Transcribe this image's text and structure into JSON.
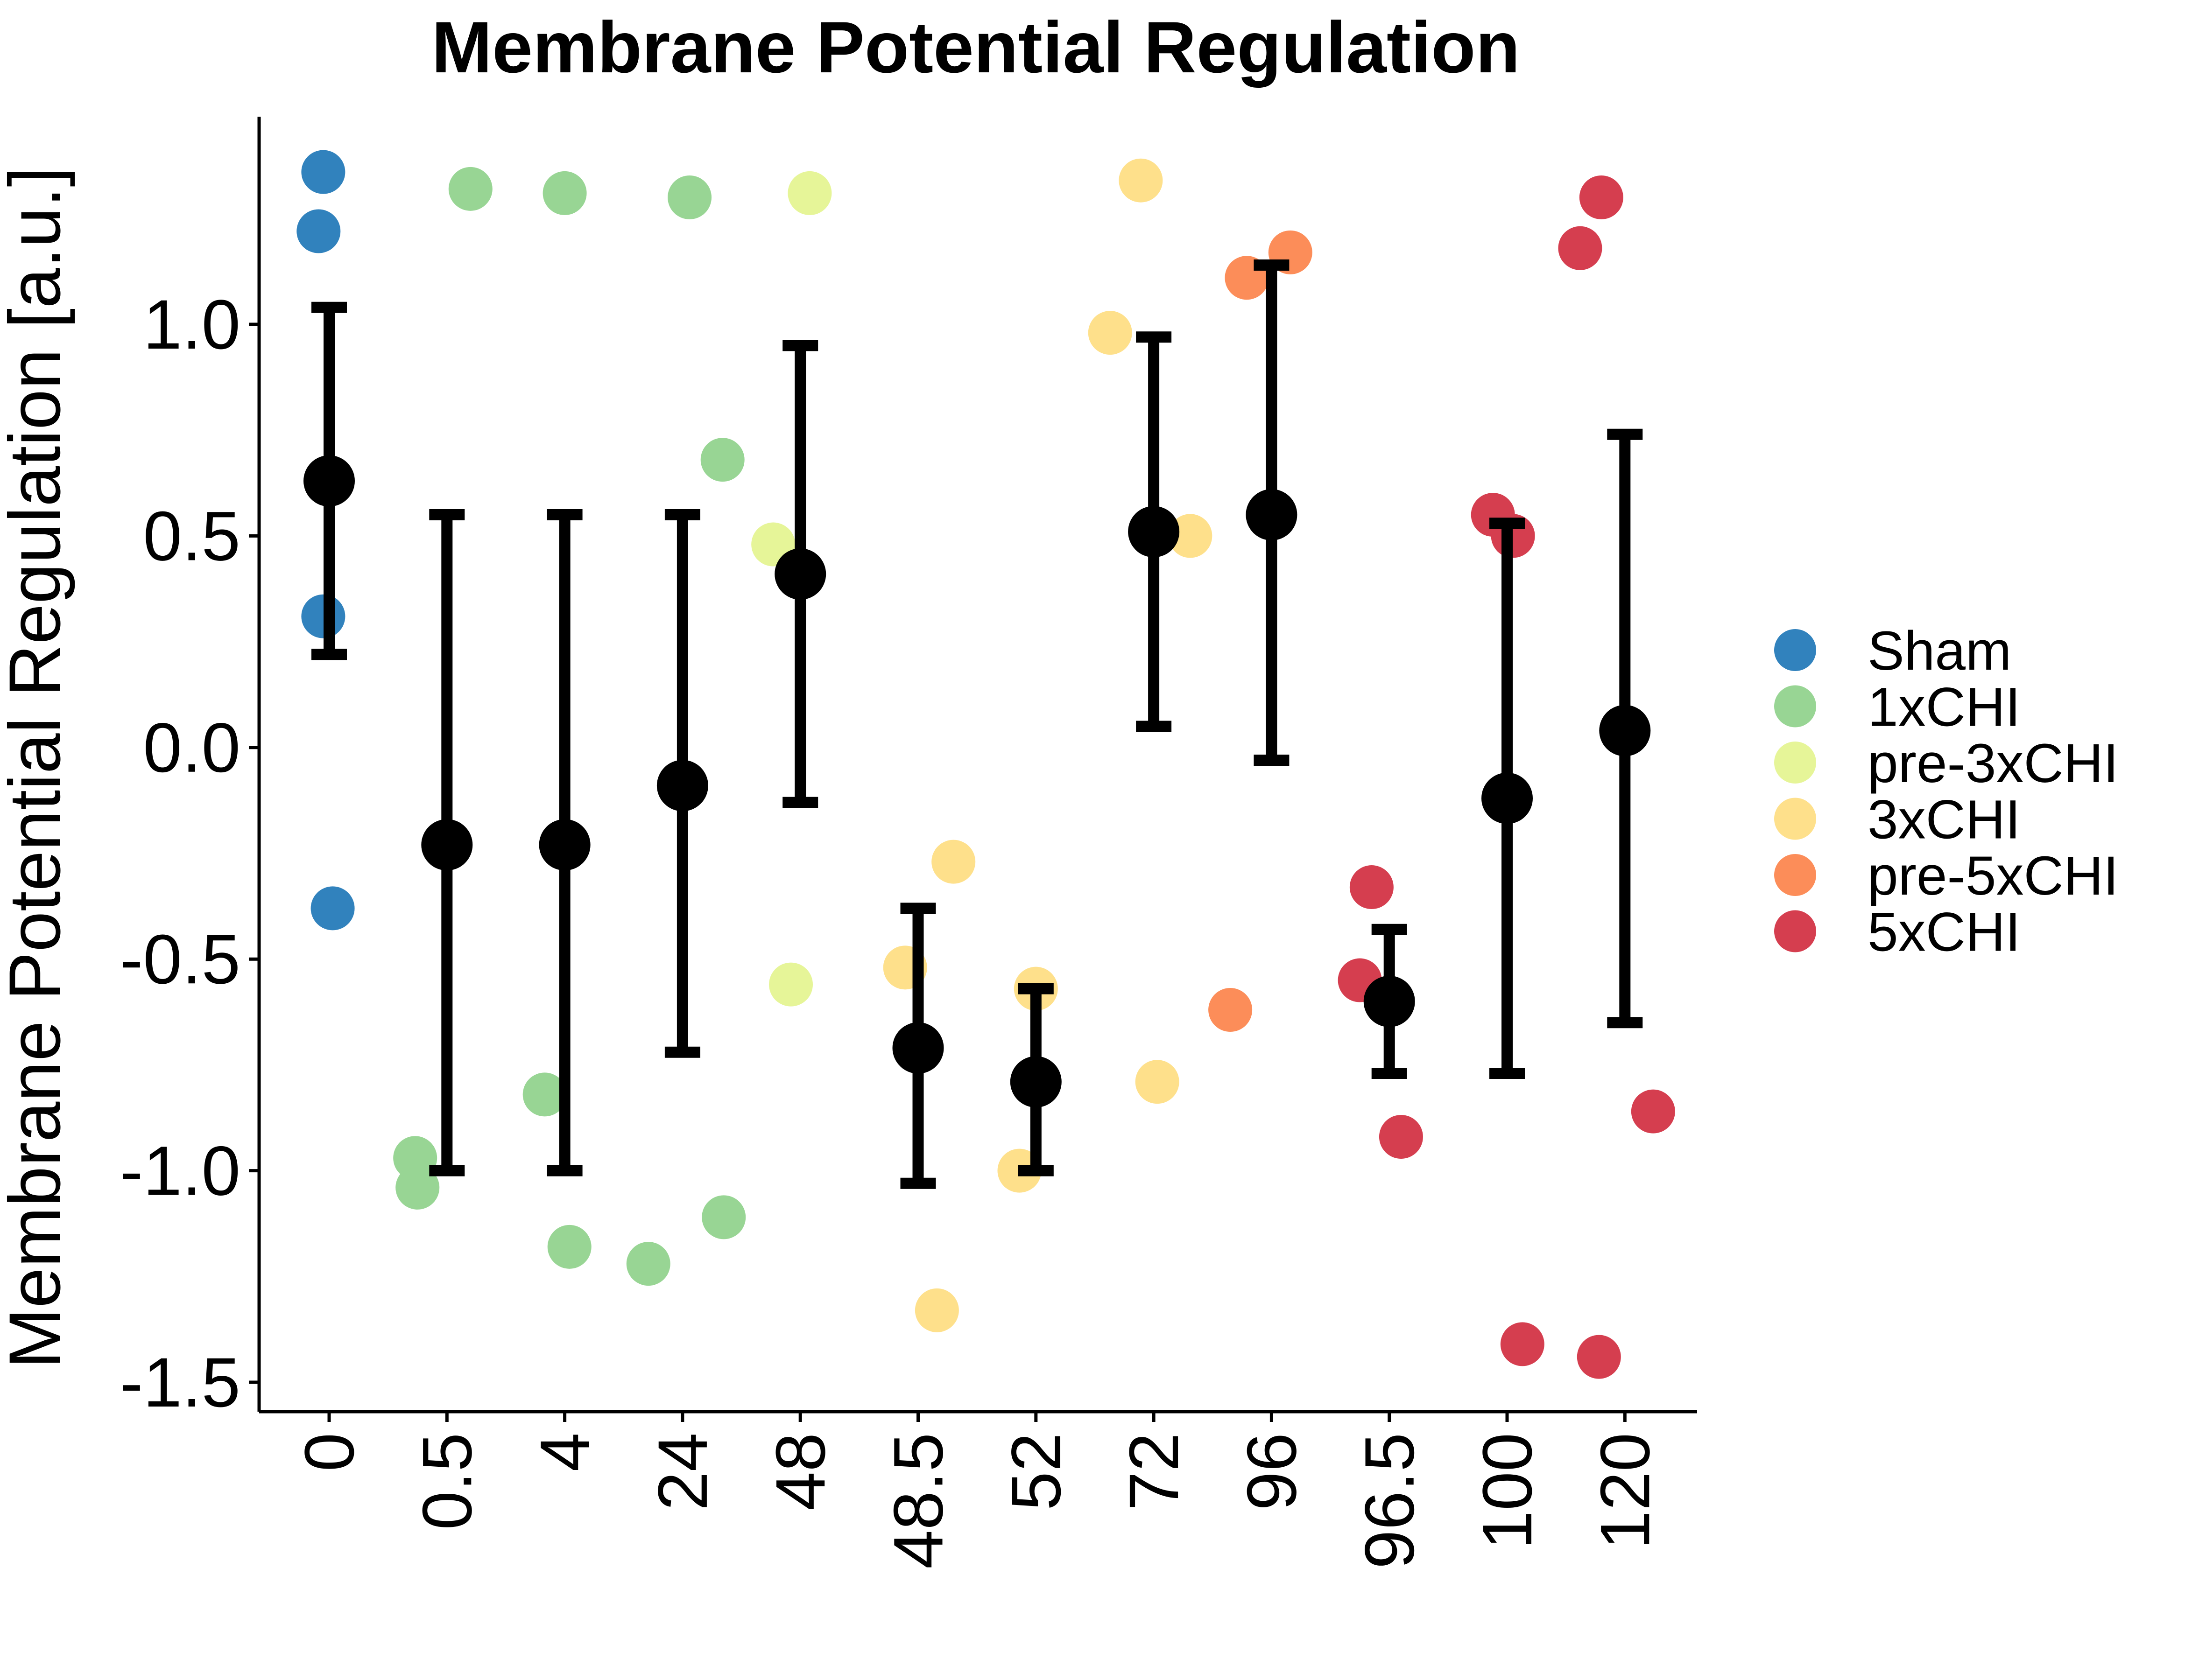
{
  "chart_data": {
    "type": "scatter",
    "title": "Membrane Potential Regulation",
    "xlabel": "",
    "ylabel": "Membrane Potential Regulation [a.u.]",
    "ylim": [
      -1.58,
      1.48
    ],
    "yticks": [
      1.0,
      0.5,
      0.0,
      -0.5,
      -1.0,
      -1.5
    ],
    "ytick_labels": [
      "1.0",
      "0.5",
      "0.0",
      "-0.5",
      "-1.0",
      "-1.5"
    ],
    "categories": [
      "0",
      "0.5",
      "4",
      "24",
      "48",
      "48.5",
      "52",
      "72",
      "96",
      "96.5",
      "100",
      "120"
    ],
    "grid": false,
    "legend_position": "right",
    "legend": [
      {
        "name": "Sham",
        "color": "#3182BD"
      },
      {
        "name": "1xCHI",
        "color": "#98D594"
      },
      {
        "name": "pre-3xCHI",
        "color": "#E6F598"
      },
      {
        "name": "3xCHI",
        "color": "#FEE08B"
      },
      {
        "name": "pre-5xCHI",
        "color": "#FC8D59"
      },
      {
        "name": "5xCHI",
        "color": "#D53E4F"
      }
    ],
    "summary": [
      {
        "category": "0",
        "mean": 0.63,
        "lower": 0.22,
        "upper": 1.04
      },
      {
        "category": "0.5",
        "mean": -0.23,
        "lower": -1.0,
        "upper": 0.55
      },
      {
        "category": "4",
        "mean": -0.23,
        "lower": -1.0,
        "upper": 0.55
      },
      {
        "category": "24",
        "mean": -0.09,
        "lower": -0.72,
        "upper": 0.55
      },
      {
        "category": "48",
        "mean": 0.41,
        "lower": -0.13,
        "upper": 0.95
      },
      {
        "category": "48.5",
        "mean": -0.71,
        "lower": -1.03,
        "upper": -0.38
      },
      {
        "category": "52",
        "mean": -0.79,
        "lower": -1.0,
        "upper": -0.57
      },
      {
        "category": "72",
        "mean": 0.51,
        "lower": 0.05,
        "upper": 0.97
      },
      {
        "category": "96",
        "mean": 0.55,
        "lower": -0.03,
        "upper": 1.14
      },
      {
        "category": "96.5",
        "mean": -0.6,
        "lower": -0.77,
        "upper": -0.43
      },
      {
        "category": "100",
        "mean": -0.12,
        "lower": -0.77,
        "upper": 0.53
      },
      {
        "category": "120",
        "mean": 0.04,
        "lower": -0.65,
        "upper": 0.74
      }
    ],
    "points": [
      {
        "category": "0",
        "group": "Sham",
        "y": 1.36,
        "jitter": -0.05
      },
      {
        "category": "0",
        "group": "Sham",
        "y": 1.22,
        "jitter": -0.09
      },
      {
        "category": "0",
        "group": "Sham",
        "y": 0.31,
        "jitter": -0.05
      },
      {
        "category": "0",
        "group": "Sham",
        "y": -0.38,
        "jitter": 0.03
      },
      {
        "category": "0.5",
        "group": "1xCHI",
        "y": 1.32,
        "jitter": 0.2
      },
      {
        "category": "0.5",
        "group": "1xCHI",
        "y": -0.97,
        "jitter": -0.27
      },
      {
        "category": "0.5",
        "group": "1xCHI",
        "y": -1.04,
        "jitter": -0.25
      },
      {
        "category": "4",
        "group": "1xCHI",
        "y": 1.31,
        "jitter": 0.0
      },
      {
        "category": "4",
        "group": "1xCHI",
        "y": -0.82,
        "jitter": -0.17
      },
      {
        "category": "4",
        "group": "1xCHI",
        "y": -1.18,
        "jitter": 0.04
      },
      {
        "category": "24",
        "group": "1xCHI",
        "y": 1.3,
        "jitter": 0.06
      },
      {
        "category": "24",
        "group": "1xCHI",
        "y": 0.68,
        "jitter": 0.34
      },
      {
        "category": "24",
        "group": "1xCHI",
        "y": -1.11,
        "jitter": 0.35
      },
      {
        "category": "24",
        "group": "1xCHI",
        "y": -1.22,
        "jitter": -0.29
      },
      {
        "category": "48",
        "group": "pre-3xCHI",
        "y": 1.31,
        "jitter": 0.08
      },
      {
        "category": "48",
        "group": "pre-3xCHI",
        "y": 0.48,
        "jitter": -0.23
      },
      {
        "category": "48",
        "group": "pre-3xCHI",
        "y": -0.56,
        "jitter": -0.08
      },
      {
        "category": "48.5",
        "group": "3xCHI",
        "y": -0.27,
        "jitter": 0.3
      },
      {
        "category": "48.5",
        "group": "3xCHI",
        "y": -0.52,
        "jitter": -0.11
      },
      {
        "category": "48.5",
        "group": "3xCHI",
        "y": -1.33,
        "jitter": 0.16
      },
      {
        "category": "52",
        "group": "3xCHI",
        "y": -0.57,
        "jitter": 0.0
      },
      {
        "category": "52",
        "group": "3xCHI",
        "y": -1.0,
        "jitter": -0.14
      },
      {
        "category": "72",
        "group": "3xCHI",
        "y": 1.34,
        "jitter": -0.11
      },
      {
        "category": "72",
        "group": "3xCHI",
        "y": 0.98,
        "jitter": -0.37
      },
      {
        "category": "72",
        "group": "3xCHI",
        "y": 0.5,
        "jitter": 0.31
      },
      {
        "category": "72",
        "group": "3xCHI",
        "y": -0.79,
        "jitter": 0.03
      },
      {
        "category": "96",
        "group": "pre-5xCHI",
        "y": 1.17,
        "jitter": 0.16
      },
      {
        "category": "96",
        "group": "pre-5xCHI",
        "y": 1.11,
        "jitter": -0.21
      },
      {
        "category": "96",
        "group": "pre-5xCHI",
        "y": -0.62,
        "jitter": -0.35
      },
      {
        "category": "96.5",
        "group": "5xCHI",
        "y": -0.33,
        "jitter": -0.15
      },
      {
        "category": "96.5",
        "group": "5xCHI",
        "y": -0.55,
        "jitter": -0.25
      },
      {
        "category": "96.5",
        "group": "5xCHI",
        "y": -0.92,
        "jitter": 0.1
      },
      {
        "category": "100",
        "group": "5xCHI",
        "y": 0.55,
        "jitter": -0.12
      },
      {
        "category": "100",
        "group": "5xCHI",
        "y": 0.5,
        "jitter": 0.05
      },
      {
        "category": "100",
        "group": "5xCHI",
        "y": -1.41,
        "jitter": 0.13
      },
      {
        "category": "120",
        "group": "5xCHI",
        "y": 1.3,
        "jitter": -0.2
      },
      {
        "category": "120",
        "group": "5xCHI",
        "y": 1.18,
        "jitter": -0.38
      },
      {
        "category": "120",
        "group": "5xCHI",
        "y": -0.86,
        "jitter": 0.24
      },
      {
        "category": "120",
        "group": "5xCHI",
        "y": -1.44,
        "jitter": -0.22
      }
    ]
  }
}
